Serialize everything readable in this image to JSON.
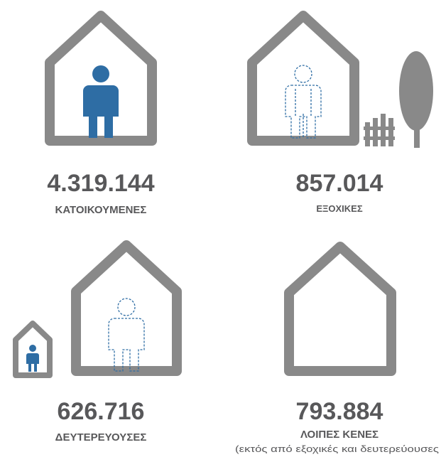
{
  "items": [
    {
      "number": "4.319.144",
      "label": "ΚΑΤΟΙΚΟΥΜΕΝΕΣ"
    },
    {
      "number": "857.014",
      "label": "ΕΞΟΧΙΚΕΣ"
    },
    {
      "number": "626.716",
      "label": "ΔΕΥΤΕΡΕΥΟΥΣΕΣ"
    },
    {
      "number": "793.884",
      "label": "ΛΟΙΠΕΣ ΚΕΝΕΣ",
      "note": "(εκτός από εξοχικές και δευτερεύουσες"
    }
  ]
}
